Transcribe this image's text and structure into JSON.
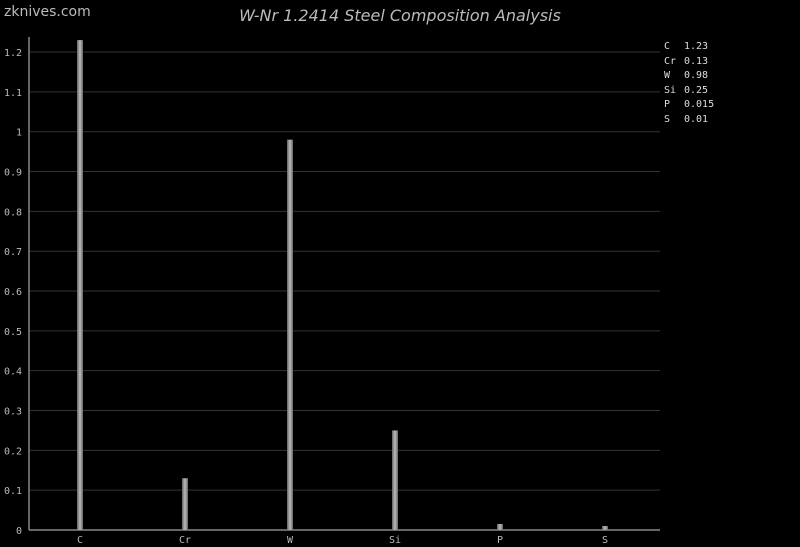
{
  "watermark": "zknives.com",
  "chart_data": {
    "type": "bar",
    "title": "W-Nr 1.2414 Steel Composition Analysis",
    "categories": [
      "C",
      "Cr",
      "W",
      "Si",
      "P",
      "S"
    ],
    "values": [
      1.23,
      0.13,
      0.98,
      0.25,
      0.015,
      0.01
    ],
    "value_labels": [
      "1.23",
      "0.13",
      "0.98",
      "0.25",
      "0.015",
      "0.01"
    ],
    "xlabel": "",
    "ylabel": "",
    "ylim": [
      0,
      1.23
    ],
    "yticks": [
      "0",
      "0.1",
      "0.2",
      "0.3",
      "0.4",
      "0.5",
      "0.6",
      "0.7",
      "0.8",
      "0.9",
      "1",
      "1.1",
      "1.2"
    ],
    "grid": true,
    "legend_placement": "top-right",
    "colors": {
      "background": "#000000",
      "bar": "#999999",
      "grid": "#333333",
      "axis": "#888888",
      "text": "#bbbbbb"
    }
  }
}
